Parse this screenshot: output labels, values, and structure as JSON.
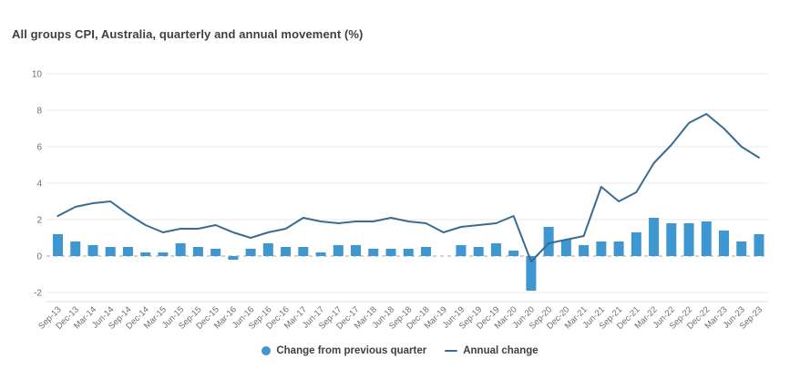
{
  "title": "All groups CPI, Australia, quarterly and annual movement (%)",
  "legend": [
    {
      "label": "Change from previous quarter",
      "marker": "circle-icon",
      "color": "#3E97D1"
    },
    {
      "label": "Annual change",
      "marker": "line-icon",
      "color": "#3A6C92"
    }
  ],
  "colors": {
    "bar": "#3E97D1",
    "line": "#3A6C92",
    "grid": "#eaeaef",
    "plot_bottom_border": "#e2e2e8",
    "zero_line": "#a6a6a6",
    "axis_label": "#6e6e6e",
    "title_text": "#3f3f3f",
    "background": "#ffffff"
  },
  "chart_data": {
    "type": "bar",
    "subtype": "bar-and-line-combo",
    "title": "All groups CPI, Australia, quarterly and annual movement (%)",
    "xlabel": "",
    "ylabel": "",
    "ylim": [
      -2.5,
      10
    ],
    "yticks": [
      10,
      8,
      6,
      4,
      2,
      0,
      -2
    ],
    "grid": "horizontal",
    "zero_line_style": "dashed",
    "legend_position": "bottom-center",
    "categories": [
      "Sep-13",
      "Dec-13",
      "Mar-14",
      "Jun-14",
      "Sep-14",
      "Dec-14",
      "Mar-15",
      "Jun-15",
      "Sep-15",
      "Dec-15",
      "Mar-16",
      "Jun-16",
      "Sep-16",
      "Dec-16",
      "Mar-17",
      "Jun-17",
      "Sep-17",
      "Dec-17",
      "Mar-18",
      "Jun-18",
      "Sep-18",
      "Dec-18",
      "Mar-19",
      "Jun-19",
      "Sep-19",
      "Dec-19",
      "Mar-20",
      "Jun-20",
      "Sep-20",
      "Dec-20",
      "Mar-21",
      "Jun-21",
      "Sep-21",
      "Dec-21",
      "Mar-22",
      "Jun-22",
      "Sep-22",
      "Dec-22",
      "Mar-23",
      "Jun-23",
      "Sep-23"
    ],
    "series": [
      {
        "name": "Change from previous quarter",
        "type": "bar",
        "color": "#3E97D1",
        "values": [
          1.2,
          0.8,
          0.6,
          0.5,
          0.5,
          0.2,
          0.2,
          0.7,
          0.5,
          0.4,
          -0.2,
          0.4,
          0.7,
          0.5,
          0.5,
          0.2,
          0.6,
          0.6,
          0.4,
          0.4,
          0.4,
          0.5,
          0.0,
          0.6,
          0.5,
          0.7,
          0.3,
          -1.9,
          1.6,
          0.9,
          0.6,
          0.8,
          0.8,
          1.3,
          2.1,
          1.8,
          1.8,
          1.9,
          1.4,
          0.8,
          1.2
        ]
      },
      {
        "name": "Annual change",
        "type": "line",
        "color": "#3A6C92",
        "values": [
          2.2,
          2.7,
          2.9,
          3.0,
          2.3,
          1.7,
          1.3,
          1.5,
          1.5,
          1.7,
          1.3,
          1.0,
          1.3,
          1.5,
          2.1,
          1.9,
          1.8,
          1.9,
          1.9,
          2.1,
          1.9,
          1.8,
          1.3,
          1.6,
          1.7,
          1.8,
          2.2,
          -0.3,
          0.7,
          0.9,
          1.1,
          3.8,
          3.0,
          3.5,
          5.1,
          6.1,
          7.3,
          7.8,
          7.0,
          6.0,
          5.4
        ]
      }
    ]
  }
}
